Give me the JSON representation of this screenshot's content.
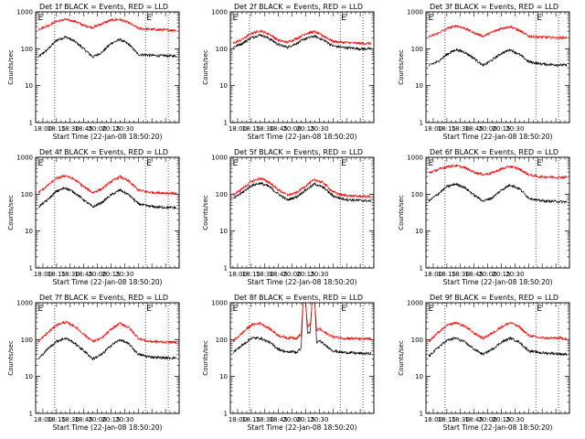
{
  "chart_data": [
    {
      "type": "line",
      "title": "Det 1f BLACK = Events, RED = LLD",
      "xlabel": "Start Time (22-Jan-08 18:50:20)",
      "ylabel": "Counts/sec",
      "yscale": "log",
      "ylim": [
        1,
        1000
      ],
      "xlim_minutes": [
        -58,
        100
      ],
      "x_tick_labels": [
        "18:00",
        "18:15",
        "18:30",
        "18:45",
        "20:00",
        "20:15",
        "20:30"
      ],
      "y_tick_labels": [
        "1",
        "10",
        "100",
        "1000"
      ],
      "series_colors": [
        "#000000",
        "#ff0000"
      ],
      "flags": [
        "E",
        "E"
      ],
      "series": [
        {
          "x": [
            -55,
            -45,
            -35,
            -25,
            -15,
            -5,
            5,
            15,
            25,
            35,
            45,
            55,
            65,
            75,
            85,
            95
          ],
          "values": [
            60,
            95,
            170,
            210,
            160,
            100,
            60,
            80,
            140,
            180,
            130,
            70,
            68,
            65,
            65,
            64
          ]
        },
        {
          "x": [
            -55,
            -45,
            -35,
            -25,
            -15,
            -5,
            5,
            15,
            25,
            35,
            45,
            55,
            65,
            75,
            85,
            95
          ],
          "values": [
            340,
            420,
            560,
            620,
            560,
            430,
            380,
            480,
            600,
            620,
            500,
            360,
            340,
            330,
            325,
            320
          ]
        }
      ]
    },
    {
      "type": "line",
      "title": "Det 2f BLACK = Events, RED = LLD",
      "xlabel": "Start Time (22-Jan-08 18:50:20)",
      "ylabel": "Counts/sec",
      "yscale": "log",
      "ylim": [
        1,
        1000
      ],
      "xlim_minutes": [
        -58,
        100
      ],
      "x_tick_labels": [
        "18:00",
        "18:15",
        "18:30",
        "18:45",
        "20:00",
        "20:15",
        "20:30"
      ],
      "y_tick_labels": [
        "1",
        "10",
        "100",
        "1000"
      ],
      "series_colors": [
        "#000000",
        "#ff0000"
      ],
      "flags": [
        "E",
        "E"
      ],
      "series": [
        {
          "x": [
            -55,
            -45,
            -35,
            -25,
            -15,
            -5,
            5,
            15,
            25,
            35,
            45,
            55,
            65,
            75,
            85,
            95
          ],
          "values": [
            110,
            140,
            200,
            240,
            190,
            130,
            110,
            140,
            190,
            220,
            170,
            120,
            110,
            105,
            100,
            100
          ]
        },
        {
          "x": [
            -55,
            -45,
            -35,
            -25,
            -15,
            -5,
            5,
            15,
            25,
            35,
            45,
            55,
            65,
            75,
            85,
            95
          ],
          "values": [
            140,
            180,
            260,
            310,
            250,
            170,
            150,
            190,
            260,
            290,
            220,
            160,
            150,
            145,
            140,
            140
          ]
        }
      ]
    },
    {
      "type": "line",
      "title": "Det 3f BLACK = Events, RED = LLD",
      "xlabel": "Start Time (22-Jan-08 18:50:20)",
      "ylabel": "Counts/sec",
      "yscale": "log",
      "ylim": [
        1,
        1000
      ],
      "xlim_minutes": [
        -58,
        100
      ],
      "x_tick_labels": [
        "18:00",
        "18:15",
        "18:30",
        "18:45",
        "20:00",
        "20:15",
        "20:30"
      ],
      "y_tick_labels": [
        "1",
        "10",
        "100",
        "1000"
      ],
      "series_colors": [
        "#000000",
        "#ff0000"
      ],
      "flags": [
        "E",
        "E"
      ],
      "series": [
        {
          "x": [
            -55,
            -45,
            -35,
            -25,
            -15,
            -5,
            5,
            15,
            25,
            35,
            45,
            55,
            65,
            75,
            85,
            95
          ],
          "values": [
            35,
            45,
            70,
            95,
            80,
            55,
            35,
            50,
            75,
            95,
            70,
            45,
            40,
            38,
            37,
            36
          ]
        },
        {
          "x": [
            -55,
            -45,
            -35,
            -25,
            -15,
            -5,
            5,
            15,
            25,
            35,
            45,
            55,
            65,
            75,
            85,
            95
          ],
          "values": [
            210,
            260,
            350,
            420,
            360,
            270,
            220,
            280,
            360,
            400,
            310,
            220,
            210,
            205,
            200,
            200
          ]
        }
      ]
    },
    {
      "type": "line",
      "title": "Det 4f BLACK = Events, RED = LLD",
      "xlabel": "Start Time (22-Jan-08 18:50:20)",
      "ylabel": "Counts/sec",
      "yscale": "log",
      "ylim": [
        1,
        1000
      ],
      "xlim_minutes": [
        -58,
        100
      ],
      "x_tick_labels": [
        "18:00",
        "18:15",
        "18:30",
        "18:45",
        "20:00",
        "20:15",
        "20:30"
      ],
      "y_tick_labels": [
        "1",
        "10",
        "100",
        "1000"
      ],
      "series_colors": [
        "#000000",
        "#ff0000"
      ],
      "flags": [
        "E",
        "E"
      ],
      "series": [
        {
          "x": [
            -55,
            -45,
            -35,
            -25,
            -15,
            -5,
            5,
            15,
            25,
            35,
            45,
            55,
            65,
            75,
            85,
            95
          ],
          "values": [
            45,
            70,
            120,
            150,
            110,
            70,
            45,
            60,
            95,
            130,
            95,
            55,
            48,
            45,
            44,
            43
          ]
        },
        {
          "x": [
            -55,
            -45,
            -35,
            -25,
            -15,
            -5,
            5,
            15,
            25,
            35,
            45,
            55,
            65,
            75,
            85,
            95
          ],
          "values": [
            110,
            170,
            270,
            320,
            250,
            160,
            110,
            140,
            220,
            300,
            220,
            130,
            115,
            110,
            108,
            106
          ]
        }
      ]
    },
    {
      "type": "line",
      "title": "Det 5f BLACK = Events, RED = LLD",
      "xlabel": "Start Time (22-Jan-08 18:50:20)",
      "ylabel": "Counts/sec",
      "yscale": "log",
      "ylim": [
        1,
        1000
      ],
      "xlim_minutes": [
        -58,
        100
      ],
      "x_tick_labels": [
        "18:00",
        "18:15",
        "18:30",
        "18:45",
        "20:00",
        "20:15",
        "20:30"
      ],
      "y_tick_labels": [
        "1",
        "10",
        "100",
        "1000"
      ],
      "series_colors": [
        "#000000",
        "#ff0000"
      ],
      "flags": [
        "E",
        "E"
      ],
      "series": [
        {
          "x": [
            -55,
            -45,
            -35,
            -25,
            -15,
            -5,
            5,
            15,
            25,
            35,
            45,
            55,
            65,
            75,
            85,
            95
          ],
          "values": [
            75,
            110,
            170,
            200,
            160,
            100,
            70,
            85,
            130,
            190,
            150,
            90,
            75,
            70,
            68,
            66
          ]
        },
        {
          "x": [
            -55,
            -45,
            -35,
            -25,
            -15,
            -5,
            5,
            15,
            25,
            35,
            45,
            55,
            65,
            75,
            85,
            95
          ],
          "values": [
            95,
            140,
            220,
            270,
            210,
            130,
            95,
            110,
            170,
            250,
            200,
            115,
            95,
            90,
            88,
            86
          ]
        }
      ]
    },
    {
      "type": "line",
      "title": "Det 6f BLACK = Events, RED = LLD",
      "xlabel": "Start Time (22-Jan-08 18:50:20)",
      "ylabel": "Counts/sec",
      "yscale": "log",
      "ylim": [
        1,
        1000
      ],
      "xlim_minutes": [
        -58,
        100
      ],
      "x_tick_labels": [
        "18:00",
        "18:15",
        "18:30",
        "18:45",
        "20:00",
        "20:15",
        "20:30"
      ],
      "y_tick_labels": [
        "1",
        "10",
        "100",
        "1000"
      ],
      "series_colors": [
        "#000000",
        "#ff0000"
      ],
      "flags": [
        "E",
        "E"
      ],
      "series": [
        {
          "x": [
            -55,
            -45,
            -35,
            -25,
            -15,
            -5,
            5,
            15,
            25,
            35,
            45,
            55,
            65,
            75,
            85,
            95
          ],
          "values": [
            65,
            100,
            160,
            190,
            150,
            95,
            65,
            80,
            130,
            180,
            140,
            80,
            68,
            65,
            64,
            62
          ]
        },
        {
          "x": [
            -55,
            -45,
            -35,
            -25,
            -15,
            -5,
            5,
            15,
            25,
            35,
            45,
            55,
            65,
            75,
            85,
            95
          ],
          "values": [
            380,
            460,
            560,
            600,
            520,
            400,
            340,
            380,
            480,
            570,
            480,
            340,
            300,
            295,
            290,
            290
          ]
        }
      ]
    },
    {
      "type": "line",
      "title": "Det 7f BLACK = Events, RED = LLD",
      "xlabel": "Start Time (22-Jan-08 18:50:20)",
      "ylabel": "Counts/sec",
      "yscale": "log",
      "ylim": [
        1,
        1000
      ],
      "xlim_minutes": [
        -58,
        100
      ],
      "x_tick_labels": [
        "18:00",
        "18:15",
        "18:30",
        "18:45",
        "20:00",
        "20:15",
        "20:30"
      ],
      "y_tick_labels": [
        "1",
        "10",
        "100",
        "1000"
      ],
      "series_colors": [
        "#000000",
        "#ff0000"
      ],
      "flags": [
        "E",
        "E"
      ],
      "series": [
        {
          "x": [
            -55,
            -45,
            -35,
            -25,
            -15,
            -5,
            5,
            15,
            25,
            35,
            45,
            55,
            65,
            75,
            85,
            95
          ],
          "values": [
            30,
            55,
            90,
            110,
            80,
            50,
            30,
            40,
            70,
            100,
            75,
            40,
            35,
            33,
            32,
            32
          ]
        },
        {
          "x": [
            -55,
            -45,
            -35,
            -25,
            -15,
            -5,
            5,
            15,
            25,
            35,
            45,
            55,
            65,
            75,
            85,
            95
          ],
          "values": [
            90,
            150,
            250,
            300,
            230,
            140,
            90,
            110,
            190,
            280,
            210,
            110,
            90,
            88,
            86,
            85
          ]
        }
      ]
    },
    {
      "type": "line",
      "title": "Det 8f BLACK = Events, RED = LLD",
      "xlabel": "Start Time (22-Jan-08 18:50:20)",
      "ylabel": "Counts/sec",
      "yscale": "log",
      "ylim": [
        1,
        1000
      ],
      "xlim_minutes": [
        -58,
        100
      ],
      "x_tick_labels": [
        "18:00",
        "18:15",
        "18:30",
        "18:45",
        "20:00",
        "20:15",
        "20:30"
      ],
      "y_tick_labels": [
        "1",
        "10",
        "100",
        "1000"
      ],
      "series_colors": [
        "#000000",
        "#ff0000"
      ],
      "flags": [
        "E",
        "E"
      ],
      "series": [
        {
          "x": [
            -55,
            -45,
            -35,
            -25,
            -15,
            -5,
            5,
            10,
            15,
            20,
            22,
            25,
            27,
            30,
            32,
            35,
            37,
            40,
            45,
            55,
            65,
            75,
            85,
            95
          ],
          "values": [
            45,
            70,
            110,
            110,
            85,
            55,
            45,
            48,
            45,
            60,
            1000,
            1000,
            150,
            160,
            1000,
            1000,
            80,
            95,
            75,
            50,
            45,
            44,
            42,
            42
          ]
        },
        {
          "x": [
            -55,
            -45,
            -35,
            -25,
            -15,
            -5,
            5,
            10,
            15,
            20,
            22,
            25,
            27,
            30,
            32,
            35,
            37,
            40,
            45,
            55,
            65,
            75,
            85,
            95
          ],
          "values": [
            90,
            150,
            250,
            280,
            200,
            130,
            110,
            115,
            110,
            140,
            1000,
            1000,
            230,
            250,
            1000,
            1000,
            170,
            200,
            160,
            120,
            110,
            108,
            105,
            105
          ]
        }
      ]
    },
    {
      "type": "line",
      "title": "Det 9f BLACK = Events, RED = LLD",
      "xlabel": "Start Time (22-Jan-08 18:50:20)",
      "ylabel": "Counts/sec",
      "yscale": "log",
      "ylim": [
        1,
        1000
      ],
      "xlim_minutes": [
        -58,
        100
      ],
      "x_tick_labels": [
        "18:00",
        "18:15",
        "18:30",
        "18:45",
        "20:00",
        "20:15",
        "20:30"
      ],
      "y_tick_labels": [
        "1",
        "10",
        "100",
        "1000"
      ],
      "series_colors": [
        "#000000",
        "#ff0000"
      ],
      "flags": [
        "E",
        "E"
      ],
      "series": [
        {
          "x": [
            -55,
            -45,
            -35,
            -25,
            -15,
            -5,
            5,
            15,
            25,
            35,
            45,
            55,
            65,
            75,
            85,
            95
          ],
          "values": [
            35,
            60,
            95,
            110,
            85,
            55,
            40,
            55,
            85,
            110,
            85,
            50,
            45,
            43,
            42,
            40
          ]
        },
        {
          "x": [
            -55,
            -45,
            -35,
            -25,
            -15,
            -5,
            5,
            15,
            25,
            35,
            45,
            55,
            65,
            75,
            85,
            95
          ],
          "values": [
            90,
            150,
            240,
            290,
            230,
            150,
            110,
            150,
            220,
            290,
            220,
            130,
            115,
            110,
            110,
            108
          ]
        }
      ]
    }
  ]
}
